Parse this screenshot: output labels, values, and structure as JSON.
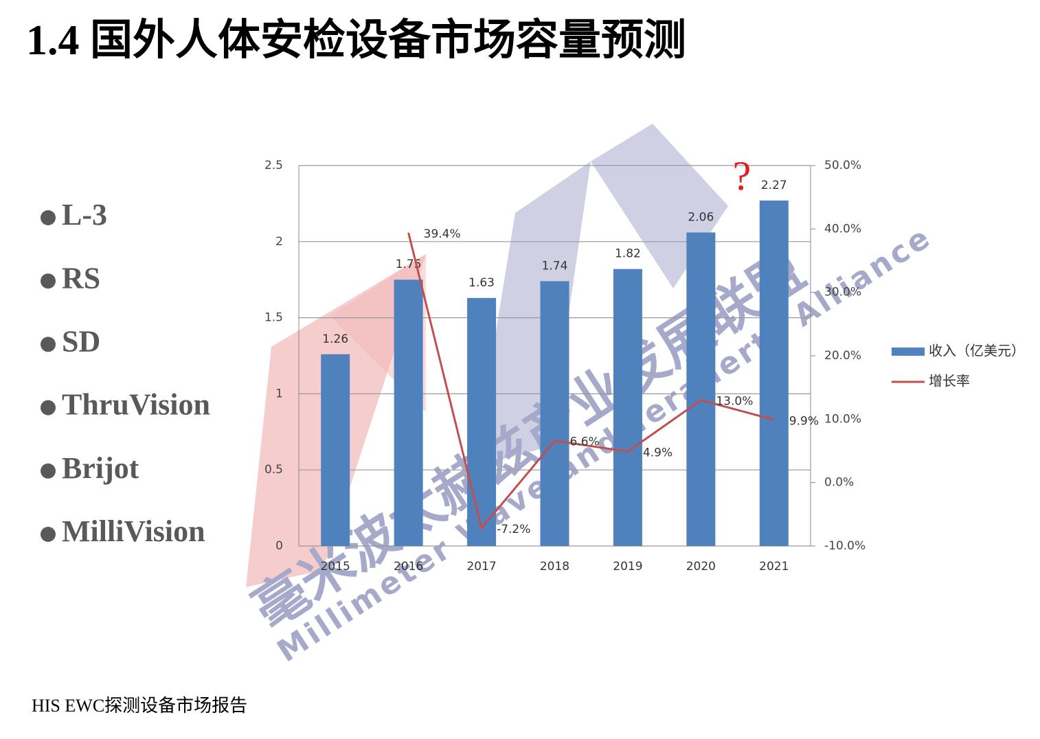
{
  "title": "1.4 国外人体安检设备市场容量预测",
  "bullets": [
    "L-3",
    "RS",
    "SD",
    "ThruVision",
    "Brijot",
    "MilliVision"
  ],
  "source": "HIS EWC探测设备市场报告",
  "watermark": [
    "毫米波太赫兹产业发展联盟",
    "Millimeter Wave and Terahertz Alliance"
  ],
  "chart_data": {
    "type": "bar",
    "annotation": "?",
    "categories": [
      "2015",
      "2016",
      "2017",
      "2018",
      "2019",
      "2020",
      "2021"
    ],
    "series": [
      {
        "name": "收入（亿美元）",
        "type": "bar",
        "color": "#4f81bd",
        "values": [
          1.26,
          1.75,
          1.63,
          1.74,
          1.82,
          2.06,
          2.27
        ]
      },
      {
        "name": "增长率",
        "type": "line",
        "axis": "y2",
        "color": "#c0504d",
        "values": [
          null,
          39.4,
          -7.2,
          6.6,
          4.9,
          13.0,
          9.9
        ],
        "value_labels": [
          null,
          "39.4%",
          "-7.2%",
          "6.6%",
          "4.9%",
          "13.0%",
          "9.9%"
        ]
      }
    ],
    "ylim": [
      0,
      2.5
    ],
    "yticks": [
      0,
      0.5,
      1,
      1.5,
      2,
      2.5
    ],
    "y2lim": [
      -10,
      50
    ],
    "y2ticks": [
      {
        "value": -10,
        "label": "-10.0%"
      },
      {
        "value": 0,
        "label": "0.0%"
      },
      {
        "value": 10,
        "label": "10.0%"
      },
      {
        "value": 20,
        "label": "20.0%"
      },
      {
        "value": 30,
        "label": "30.0%"
      },
      {
        "value": 40,
        "label": "40.0%"
      },
      {
        "value": 50,
        "label": "50.0%"
      }
    ],
    "grid": true,
    "legend": "right"
  }
}
